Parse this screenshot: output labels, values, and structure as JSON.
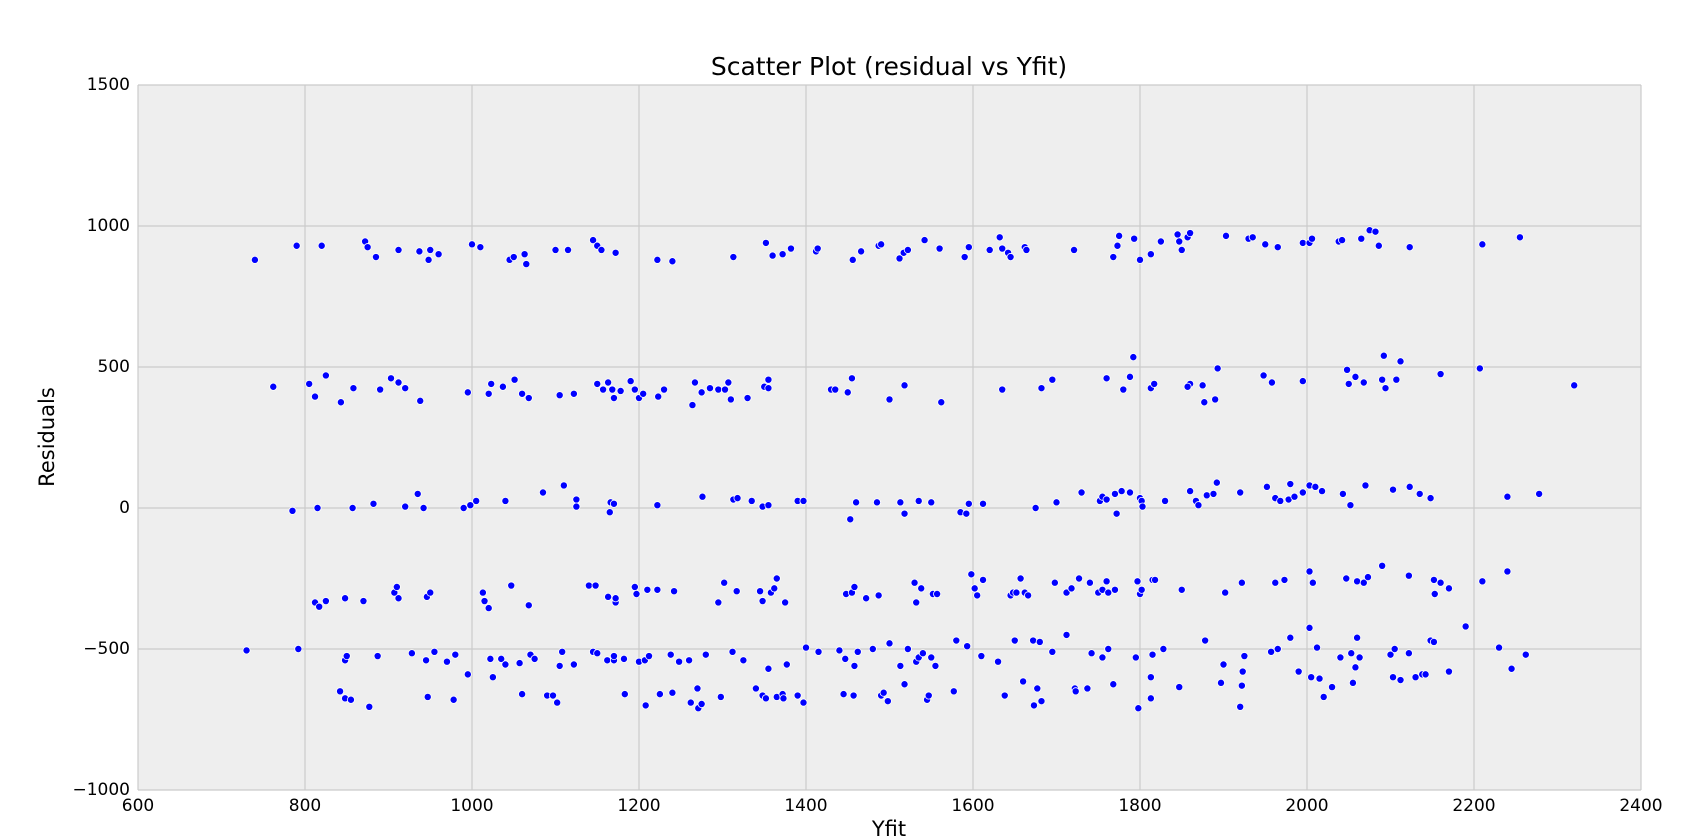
{
  "chart_data": {
    "type": "scatter",
    "title": "Scatter Plot (residual vs Yfit)",
    "x_label": "Yfit",
    "y_label": "Residuals",
    "xlim": [
      600,
      2400
    ],
    "xticks": [
      600,
      800,
      1000,
      1200,
      1400,
      1600,
      1800,
      2000,
      2200,
      2400
    ],
    "ylim": [
      -1000,
      1500
    ],
    "yticks": [
      {
        "value": -1000,
        "label": "−1000"
      },
      {
        "value": -500,
        "label": "−500"
      },
      0,
      500,
      1000,
      1500
    ],
    "grid": true,
    "background": "#eeeeee",
    "x": [
      740,
      790,
      820,
      872,
      875,
      885,
      912,
      937,
      948,
      950,
      960,
      1000,
      1010,
      1045,
      1050,
      1063,
      1065,
      1100,
      1115,
      1145,
      1150,
      1155,
      1172,
      1222,
      1240,
      1313,
      1352,
      1360,
      1372,
      1382,
      1412,
      1414,
      1456,
      1466,
      1487,
      1490,
      1512,
      1517,
      1522,
      1542,
      1560,
      1590,
      1595,
      1620,
      1632,
      1635,
      1642,
      1645,
      1662,
      1664,
      1721,
      1768,
      1773,
      1775,
      1793,
      1800,
      1813,
      1825,
      1845,
      1847,
      1850,
      1857,
      1860,
      1903,
      1930,
      1935,
      1950,
      1965,
      1995,
      2003,
      2006,
      2038,
      2042,
      2065,
      2075,
      2082,
      2086,
      2123,
      2210,
      2255,
      762,
      805,
      812,
      825,
      843,
      858,
      890,
      903,
      912,
      920,
      938,
      995,
      1020,
      1023,
      1037,
      1051,
      1060,
      1068,
      1105,
      1122,
      1150,
      1157,
      1163,
      1168,
      1170,
      1178,
      1190,
      1195,
      1200,
      1205,
      1223,
      1230,
      1264,
      1267,
      1275,
      1285,
      1295,
      1303,
      1307,
      1310,
      1330,
      1350,
      1355,
      1355,
      1430,
      1435,
      1450,
      1455,
      1500,
      1518,
      1562,
      1635,
      1682,
      1695,
      1760,
      1780,
      1788,
      1792,
      1813,
      1817,
      1860,
      1857,
      1875,
      1877,
      1890,
      1893,
      1948,
      1958,
      1995,
      2048,
      2050,
      2058,
      2068,
      2090,
      2092,
      2094,
      2107,
      2112,
      2160,
      2207,
      2320,
      785,
      815,
      857,
      882,
      920,
      935,
      942,
      990,
      998,
      1005,
      1040,
      1085,
      1110,
      1125,
      1125,
      1165,
      1166,
      1170,
      1222,
      1276,
      1313,
      1318,
      1335,
      1348,
      1355,
      1390,
      1397,
      1453,
      1460,
      1485,
      1513,
      1518,
      1535,
      1550,
      1585,
      1592,
      1595,
      1612,
      1675,
      1700,
      1730,
      1752,
      1755,
      1760,
      1770,
      1772,
      1778,
      1788,
      1800,
      1802,
      1803,
      1830,
      1860,
      1867,
      1870,
      1880,
      1888,
      1892,
      1920,
      1952,
      1962,
      1968,
      1978,
      1980,
      1985,
      1995,
      2003,
      2010,
      2018,
      2043,
      2052,
      2070,
      2103,
      2123,
      2135,
      2148,
      2240,
      2278,
      812,
      817,
      825,
      848,
      870,
      907,
      910,
      912,
      946,
      950,
      1013,
      1015,
      1020,
      1047,
      1068,
      1140,
      1148,
      1163,
      1172,
      1172,
      1195,
      1197,
      1210,
      1222,
      1242,
      1295,
      1302,
      1317,
      1345,
      1348,
      1358,
      1362,
      1365,
      1375,
      1448,
      1455,
      1458,
      1472,
      1487,
      1530,
      1532,
      1538,
      1552,
      1557,
      1598,
      1602,
      1605,
      1612,
      1645,
      1648,
      1652,
      1657,
      1662,
      1666,
      1698,
      1712,
      1718,
      1727,
      1740,
      1750,
      1755,
      1760,
      1762,
      1770,
      1797,
      1800,
      1802,
      1815,
      1818,
      1850,
      1902,
      1922,
      1962,
      1973,
      2003,
      2007,
      2047,
      2060,
      2068,
      2073,
      2090,
      2122,
      2152,
      2153,
      2160,
      2170,
      2210,
      2240,
      730,
      792,
      842,
      848,
      850,
      848,
      855,
      877,
      887,
      928,
      945,
      947,
      955,
      970,
      978,
      980,
      995,
      1022,
      1025,
      1035,
      1040,
      1057,
      1060,
      1070,
      1075,
      1090,
      1097,
      1102,
      1105,
      1108,
      1122,
      1145,
      1150,
      1162,
      1170,
      1170,
      1182,
      1183,
      1200,
      1207,
      1208,
      1212,
      1225,
      1238,
      1240,
      1248,
      1260,
      1262,
      1270,
      1271,
      1275,
      1280,
      1298,
      1312,
      1325,
      1340,
      1348,
      1352,
      1355,
      1365,
      1372,
      1373,
      1377,
      1390,
      1397,
      1400,
      1415,
      1440,
      1445,
      1447,
      1457,
      1458,
      1462,
      1480,
      1490,
      1493,
      1498,
      1500,
      1513,
      1518,
      1522,
      1532,
      1535,
      1540,
      1545,
      1547,
      1550,
      1555,
      1577,
      1580,
      1593,
      1610,
      1630,
      1638,
      1650,
      1660,
      1672,
      1673,
      1677,
      1680,
      1682,
      1695,
      1712,
      1722,
      1723,
      1737,
      1742,
      1755,
      1762,
      1768,
      1795,
      1798,
      1813,
      1813,
      1815,
      1828,
      1847,
      1878,
      1897,
      1900,
      1920,
      1923,
      1922,
      1925,
      1990,
      1980,
      1957,
      1965,
      2003,
      2005,
      2012,
      2015,
      2020,
      2030,
      2040,
      2053,
      2055,
      2058,
      2060,
      2063,
      2100,
      2103,
      2105,
      2112,
      2122,
      2130,
      2138,
      2142,
      2148,
      2152,
      2170,
      2190,
      2230,
      2245,
      2262
    ],
    "series": [
      {
        "color": "#0000ff",
        "values": [
          880,
          930,
          930,
          945,
          925,
          890,
          915,
          910,
          880,
          915,
          900,
          935,
          925,
          880,
          890,
          900,
          865,
          915,
          915,
          950,
          930,
          915,
          905,
          880,
          875,
          890,
          940,
          895,
          900,
          920,
          910,
          920,
          880,
          910,
          930,
          935,
          885,
          905,
          915,
          950,
          920,
          890,
          925,
          915,
          960,
          920,
          905,
          890,
          925,
          915,
          915,
          890,
          930,
          965,
          955,
          880,
          900,
          945,
          970,
          945,
          915,
          960,
          975,
          965,
          955,
          960,
          935,
          925,
          940,
          940,
          955,
          945,
          950,
          955,
          985,
          980,
          930,
          925,
          935,
          960,
          430,
          440,
          395,
          470,
          375,
          425,
          420,
          460,
          445,
          425,
          380,
          410,
          405,
          440,
          430,
          455,
          405,
          390,
          400,
          405,
          440,
          420,
          445,
          420,
          390,
          415,
          450,
          420,
          390,
          405,
          395,
          420,
          365,
          445,
          410,
          425,
          420,
          420,
          445,
          385,
          390,
          430,
          455,
          425,
          420,
          420,
          410,
          460,
          385,
          435,
          375,
          420,
          425,
          455,
          460,
          420,
          465,
          535,
          425,
          440,
          440,
          430,
          435,
          375,
          385,
          495,
          470,
          445,
          450,
          490,
          440,
          465,
          445,
          455,
          540,
          425,
          455,
          520,
          475,
          495,
          435,
          -10,
          0,
          0,
          15,
          5,
          50,
          0,
          0,
          10,
          25,
          25,
          55,
          80,
          30,
          5,
          -15,
          20,
          15,
          10,
          40,
          30,
          35,
          25,
          5,
          10,
          25,
          25,
          -40,
          20,
          20,
          20,
          -20,
          25,
          20,
          -15,
          -20,
          15,
          15,
          0,
          20,
          55,
          25,
          40,
          30,
          50,
          -20,
          60,
          55,
          35,
          25,
          5,
          25,
          60,
          25,
          10,
          45,
          50,
          90,
          55,
          75,
          35,
          25,
          30,
          85,
          40,
          55,
          80,
          75,
          60,
          50,
          10,
          80,
          65,
          75,
          50,
          35,
          40,
          50,
          -335,
          -350,
          -330,
          -320,
          -330,
          -300,
          -280,
          -320,
          -315,
          -300,
          -300,
          -330,
          -355,
          -275,
          -345,
          -275,
          -275,
          -315,
          -335,
          -320,
          -280,
          -305,
          -290,
          -290,
          -295,
          -335,
          -265,
          -295,
          -295,
          -330,
          -300,
          -285,
          -250,
          -335,
          -305,
          -300,
          -280,
          -320,
          -310,
          -265,
          -335,
          -285,
          -305,
          -305,
          -235,
          -285,
          -310,
          -255,
          -310,
          -300,
          -300,
          -250,
          -300,
          -310,
          -265,
          -300,
          -285,
          -250,
          -265,
          -300,
          -290,
          -260,
          -300,
          -290,
          -260,
          -305,
          -290,
          -255,
          -255,
          -290,
          -300,
          -265,
          -265,
          -255,
          -225,
          -265,
          -250,
          -260,
          -265,
          -245,
          -205,
          -240,
          -255,
          -305,
          -265,
          -285,
          -260,
          -225,
          -505,
          -500,
          -650,
          -540,
          -525,
          -675,
          -680,
          -705,
          -525,
          -515,
          -540,
          -670,
          -510,
          -545,
          -680,
          -520,
          -590,
          -535,
          -600,
          -535,
          -555,
          -550,
          -660,
          -520,
          -535,
          -665,
          -665,
          -690,
          -560,
          -510,
          -555,
          -510,
          -515,
          -540,
          -540,
          -525,
          -535,
          -660,
          -545,
          -540,
          -700,
          -525,
          -660,
          -520,
          -655,
          -545,
          -540,
          -690,
          -640,
          -710,
          -695,
          -520,
          -670,
          -510,
          -540,
          -640,
          -665,
          -675,
          -570,
          -670,
          -660,
          -675,
          -555,
          -665,
          -690,
          -495,
          -510,
          -505,
          -660,
          -535,
          -665,
          -560,
          -510,
          -500,
          -665,
          -655,
          -685,
          -480,
          -560,
          -625,
          -500,
          -545,
          -530,
          -515,
          -680,
          -665,
          -530,
          -560,
          -650,
          -470,
          -490,
          -525,
          -545,
          -665,
          -470,
          -615,
          -470,
          -700,
          -640,
          -475,
          -685,
          -510,
          -450,
          -640,
          -650,
          -640,
          -515,
          -530,
          -500,
          -625,
          -530,
          -710,
          -600,
          -675,
          -520,
          -500,
          -635,
          -470,
          -620,
          -555,
          -705,
          -580,
          -630,
          -525,
          -580,
          -460,
          -510,
          -500,
          -425,
          -600,
          -495,
          -605,
          -670,
          -635,
          -530,
          -515,
          -620,
          -565,
          -460,
          -530,
          -520,
          -600,
          -500,
          -610,
          -515,
          -600,
          -590,
          -590,
          -470,
          -475,
          -580,
          -420,
          -495,
          -570,
          -520
        ]
      }
    ]
  }
}
